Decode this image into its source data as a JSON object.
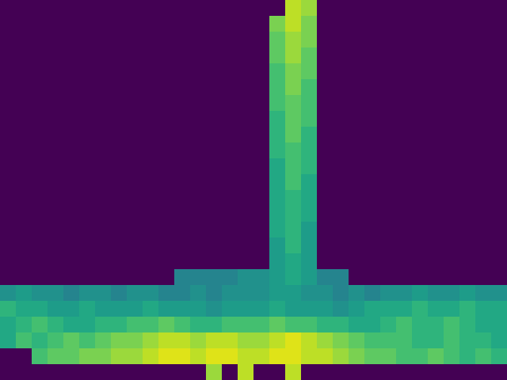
{
  "chart_data": {
    "type": "heatmap",
    "tick_labels": false,
    "cells": [
      [
        0,
        0,
        0,
        0,
        0,
        0,
        0,
        0,
        0,
        0,
        0,
        0,
        0,
        0,
        0,
        0,
        0,
        0,
        0.9,
        0.85,
        0,
        0,
        0,
        0,
        0,
        0,
        0,
        0,
        0,
        0,
        0,
        0
      ],
      [
        0,
        0,
        0,
        0,
        0,
        0,
        0,
        0,
        0,
        0,
        0,
        0,
        0,
        0,
        0,
        0,
        0,
        0.8,
        0.9,
        0.8,
        0,
        0,
        0,
        0,
        0,
        0,
        0,
        0,
        0,
        0,
        0,
        0
      ],
      [
        0,
        0,
        0,
        0,
        0,
        0,
        0,
        0,
        0,
        0,
        0,
        0,
        0,
        0,
        0,
        0,
        0,
        0.75,
        0.85,
        0.8,
        0,
        0,
        0,
        0,
        0,
        0,
        0,
        0,
        0,
        0,
        0,
        0
      ],
      [
        0,
        0,
        0,
        0,
        0,
        0,
        0,
        0,
        0,
        0,
        0,
        0,
        0,
        0,
        0,
        0,
        0,
        0.75,
        0.85,
        0.75,
        0,
        0,
        0,
        0,
        0,
        0,
        0,
        0,
        0,
        0,
        0,
        0
      ],
      [
        0,
        0,
        0,
        0,
        0,
        0,
        0,
        0,
        0,
        0,
        0,
        0,
        0,
        0,
        0,
        0,
        0,
        0.7,
        0.8,
        0.75,
        0,
        0,
        0,
        0,
        0,
        0,
        0,
        0,
        0,
        0,
        0,
        0
      ],
      [
        0,
        0,
        0,
        0,
        0,
        0,
        0,
        0,
        0,
        0,
        0,
        0,
        0,
        0,
        0,
        0,
        0,
        0.7,
        0.8,
        0.7,
        0,
        0,
        0,
        0,
        0,
        0,
        0,
        0,
        0,
        0,
        0,
        0
      ],
      [
        0,
        0,
        0,
        0,
        0,
        0,
        0,
        0,
        0,
        0,
        0,
        0,
        0,
        0,
        0,
        0,
        0,
        0.7,
        0.75,
        0.7,
        0,
        0,
        0,
        0,
        0,
        0,
        0,
        0,
        0,
        0,
        0,
        0
      ],
      [
        0,
        0,
        0,
        0,
        0,
        0,
        0,
        0,
        0,
        0,
        0,
        0,
        0,
        0,
        0,
        0,
        0,
        0.65,
        0.75,
        0.7,
        0,
        0,
        0,
        0,
        0,
        0,
        0,
        0,
        0,
        0,
        0,
        0
      ],
      [
        0,
        0,
        0,
        0,
        0,
        0,
        0,
        0,
        0,
        0,
        0,
        0,
        0,
        0,
        0,
        0,
        0,
        0.65,
        0.75,
        0.65,
        0,
        0,
        0,
        0,
        0,
        0,
        0,
        0,
        0,
        0,
        0,
        0
      ],
      [
        0,
        0,
        0,
        0,
        0,
        0,
        0,
        0,
        0,
        0,
        0,
        0,
        0,
        0,
        0,
        0,
        0,
        0.65,
        0.7,
        0.65,
        0,
        0,
        0,
        0,
        0,
        0,
        0,
        0,
        0,
        0,
        0,
        0
      ],
      [
        0,
        0,
        0,
        0,
        0,
        0,
        0,
        0,
        0,
        0,
        0,
        0,
        0,
        0,
        0,
        0,
        0,
        0.6,
        0.7,
        0.65,
        0,
        0,
        0,
        0,
        0,
        0,
        0,
        0,
        0,
        0,
        0,
        0
      ],
      [
        0,
        0,
        0,
        0,
        0,
        0,
        0,
        0,
        0,
        0,
        0,
        0,
        0,
        0,
        0,
        0,
        0,
        0.6,
        0.7,
        0.6,
        0,
        0,
        0,
        0,
        0,
        0,
        0,
        0,
        0,
        0,
        0,
        0
      ],
      [
        0,
        0,
        0,
        0,
        0,
        0,
        0,
        0,
        0,
        0,
        0,
        0,
        0,
        0,
        0,
        0,
        0,
        0.6,
        0.65,
        0.6,
        0,
        0,
        0,
        0,
        0,
        0,
        0,
        0,
        0,
        0,
        0,
        0
      ],
      [
        0,
        0,
        0,
        0,
        0,
        0,
        0,
        0,
        0,
        0,
        0,
        0,
        0,
        0,
        0,
        0,
        0,
        0.6,
        0.65,
        0.6,
        0,
        0,
        0,
        0,
        0,
        0,
        0,
        0,
        0,
        0,
        0,
        0
      ],
      [
        0,
        0,
        0,
        0,
        0,
        0,
        0,
        0,
        0,
        0,
        0,
        0,
        0,
        0,
        0,
        0,
        0,
        0.6,
        0.65,
        0.55,
        0,
        0,
        0,
        0,
        0,
        0,
        0,
        0,
        0,
        0,
        0,
        0
      ],
      [
        0,
        0,
        0,
        0,
        0,
        0,
        0,
        0,
        0,
        0,
        0,
        0,
        0,
        0,
        0,
        0,
        0,
        0.55,
        0.65,
        0.55,
        0,
        0,
        0,
        0,
        0,
        0,
        0,
        0,
        0,
        0,
        0,
        0
      ],
      [
        0,
        0,
        0,
        0,
        0,
        0,
        0,
        0,
        0,
        0,
        0,
        0,
        0,
        0,
        0,
        0,
        0,
        0.55,
        0.6,
        0.55,
        0,
        0,
        0,
        0,
        0,
        0,
        0,
        0,
        0,
        0,
        0,
        0
      ],
      [
        0,
        0,
        0,
        0,
        0,
        0,
        0,
        0,
        0,
        0,
        0,
        0.45,
        0.45,
        0.45,
        0.45,
        0.5,
        0.5,
        0.55,
        0.6,
        0.55,
        0.45,
        0.45,
        0,
        0,
        0,
        0,
        0,
        0,
        0,
        0,
        0,
        0
      ],
      [
        0.5,
        0.55,
        0.5,
        0.5,
        0.45,
        0.5,
        0.5,
        0.45,
        0.5,
        0.5,
        0.45,
        0.45,
        0.5,
        0.45,
        0.5,
        0.5,
        0.5,
        0.55,
        0.55,
        0.5,
        0.5,
        0.45,
        0.5,
        0.45,
        0.5,
        0.5,
        0.55,
        0.5,
        0.5,
        0.55,
        0.5,
        0.5
      ],
      [
        0.65,
        0.6,
        0.6,
        0.55,
        0.55,
        0.6,
        0.55,
        0.55,
        0.55,
        0.6,
        0.55,
        0.55,
        0.55,
        0.5,
        0.55,
        0.55,
        0.55,
        0.6,
        0.55,
        0.55,
        0.55,
        0.5,
        0.55,
        0.6,
        0.6,
        0.6,
        0.65,
        0.6,
        0.6,
        0.65,
        0.6,
        0.6
      ],
      [
        0.6,
        0.65,
        0.7,
        0.65,
        0.6,
        0.6,
        0.65,
        0.65,
        0.7,
        0.7,
        0.75,
        0.7,
        0.65,
        0.65,
        0.7,
        0.7,
        0.7,
        0.75,
        0.7,
        0.7,
        0.65,
        0.65,
        0.6,
        0.6,
        0.65,
        0.7,
        0.65,
        0.65,
        0.7,
        0.65,
        0.6,
        0.6
      ],
      [
        0.6,
        0.7,
        0.65,
        0.7,
        0.75,
        0.7,
        0.75,
        0.8,
        0.8,
        0.85,
        0.9,
        0.9,
        0.85,
        0.9,
        0.9,
        0.85,
        0.85,
        0.9,
        0.95,
        0.9,
        0.85,
        0.8,
        0.75,
        0.7,
        0.7,
        0.7,
        0.65,
        0.65,
        0.7,
        0.65,
        0.65,
        0.6
      ],
      [
        0,
        0,
        0.7,
        0.75,
        0.75,
        0.8,
        0.8,
        0.85,
        0.85,
        0.9,
        0.95,
        0.95,
        0.9,
        0.95,
        0.95,
        0.9,
        0.9,
        0.95,
        0.95,
        0.9,
        0.9,
        0.85,
        0.8,
        0.75,
        0.75,
        0.7,
        0.7,
        0.75,
        0.7,
        0.65,
        0.7,
        0.65
      ],
      [
        0,
        0,
        0,
        0,
        0,
        0,
        0,
        0,
        0,
        0,
        0,
        0,
        0,
        0.85,
        0,
        0.9,
        0,
        0,
        0.9,
        0,
        0,
        0,
        0,
        0,
        0,
        0,
        0,
        0,
        0,
        0,
        0,
        0
      ]
    ]
  }
}
